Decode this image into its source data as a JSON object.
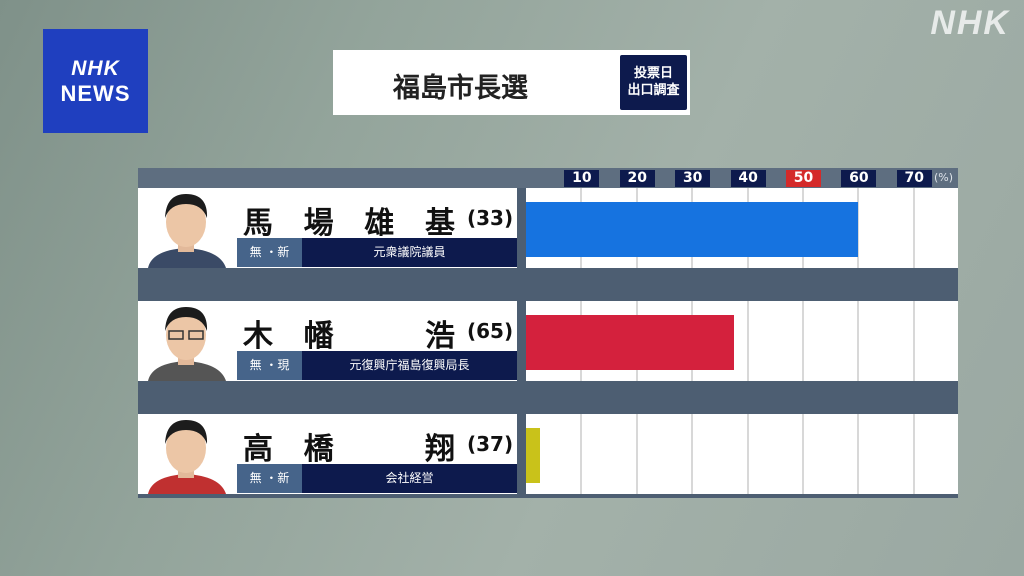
{
  "logo": {
    "line1": "NHK",
    "line2": "NEWS"
  },
  "watermark": "NHK",
  "header": {
    "title": "福島市長選",
    "badge_line1": "投票日",
    "badge_line2": "出口調査"
  },
  "colors": {
    "navy": "#0d1a4d",
    "party_box": "#46648a",
    "tick_50": "#d42a2a"
  },
  "chart_data": {
    "type": "bar",
    "orientation": "horizontal",
    "unit": "(%)",
    "xlim": [
      0,
      75
    ],
    "ticks": [
      "10",
      "20",
      "30",
      "40",
      "50",
      "60",
      "70"
    ],
    "grid": true,
    "categories": [
      "馬場雄基",
      "木幡浩",
      "高橋翔"
    ],
    "values": [
      60,
      37.5,
      2.5
    ],
    "bar_colors": [
      "#1673e0",
      "#d4213d",
      "#c9c21a"
    ]
  },
  "candidates": [
    {
      "name_chars": [
        "馬",
        "場",
        "雄",
        "基"
      ],
      "age": "(33)",
      "party": "無",
      "status": "新",
      "party_label": "無 ・新",
      "occupation": "元衆議院議員"
    },
    {
      "name_chars": [
        "木",
        "幡",
        "",
        "浩"
      ],
      "age": "(65)",
      "party": "無",
      "status": "現",
      "party_label": "無 ・現",
      "occupation": "元復興庁福島復興局長"
    },
    {
      "name_chars": [
        "高",
        "橋",
        "",
        "翔"
      ],
      "age": "(37)",
      "party": "無",
      "status": "新",
      "party_label": "無 ・新",
      "occupation": "会社経営"
    }
  ]
}
